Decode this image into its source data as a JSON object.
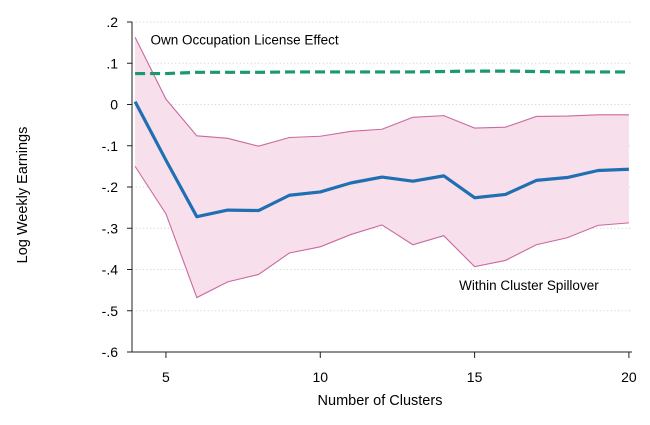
{
  "chart_data": {
    "type": "line",
    "title": "",
    "xlabel": "Number of Clusters",
    "ylabel": "Log Weekly Earnings",
    "xlim": [
      3.9,
      20.1
    ],
    "ylim": [
      -0.6,
      0.2
    ],
    "xticks": [
      5,
      10,
      15,
      20
    ],
    "xtick_labels": [
      "5",
      "10",
      "15",
      "20"
    ],
    "yticks": [
      0.2,
      0.1,
      0,
      -0.1,
      -0.2,
      -0.3,
      -0.4,
      -0.5,
      -0.6
    ],
    "ytick_labels": [
      ".2",
      ".1",
      "0",
      "-.1",
      "-.2",
      "-.3",
      "-.4",
      "-.5",
      "-.6"
    ],
    "grid": true,
    "annotations": [
      {
        "text": "Own Occupation License Effect",
        "x": 4.5,
        "y": 0.145
      },
      {
        "text": "Within Cluster Spillover",
        "x": 14.5,
        "y": -0.45
      }
    ],
    "x": [
      4,
      5,
      6,
      7,
      8,
      9,
      10,
      11,
      12,
      13,
      14,
      15,
      16,
      17,
      18,
      19,
      20
    ],
    "series": [
      {
        "role": "own_effect",
        "style": "dashed",
        "color": "#1a9a6c",
        "values": [
          0.075,
          0.075,
          0.078,
          0.078,
          0.078,
          0.079,
          0.079,
          0.079,
          0.079,
          0.079,
          0.08,
          0.081,
          0.081,
          0.08,
          0.079,
          0.079,
          0.079
        ]
      },
      {
        "role": "spillover",
        "style": "solid",
        "color": "#1f6fb2",
        "values": [
          0.007,
          -0.135,
          -0.272,
          -0.256,
          -0.257,
          -0.22,
          -0.212,
          -0.19,
          -0.176,
          -0.186,
          -0.173,
          -0.226,
          -0.218,
          -0.184,
          -0.177,
          -0.16,
          -0.157
        ],
        "ci_lower": [
          -0.15,
          -0.265,
          -0.468,
          -0.43,
          -0.412,
          -0.36,
          -0.345,
          -0.315,
          -0.292,
          -0.34,
          -0.318,
          -0.393,
          -0.378,
          -0.34,
          -0.323,
          -0.293,
          -0.287
        ],
        "ci_upper": [
          0.163,
          0.013,
          -0.076,
          -0.082,
          -0.101,
          -0.08,
          -0.077,
          -0.065,
          -0.06,
          -0.031,
          -0.027,
          -0.057,
          -0.055,
          -0.029,
          -0.028,
          -0.025,
          -0.025
        ],
        "ci_fill": "#f7dfec",
        "ci_line": "#c96aa0"
      }
    ]
  }
}
